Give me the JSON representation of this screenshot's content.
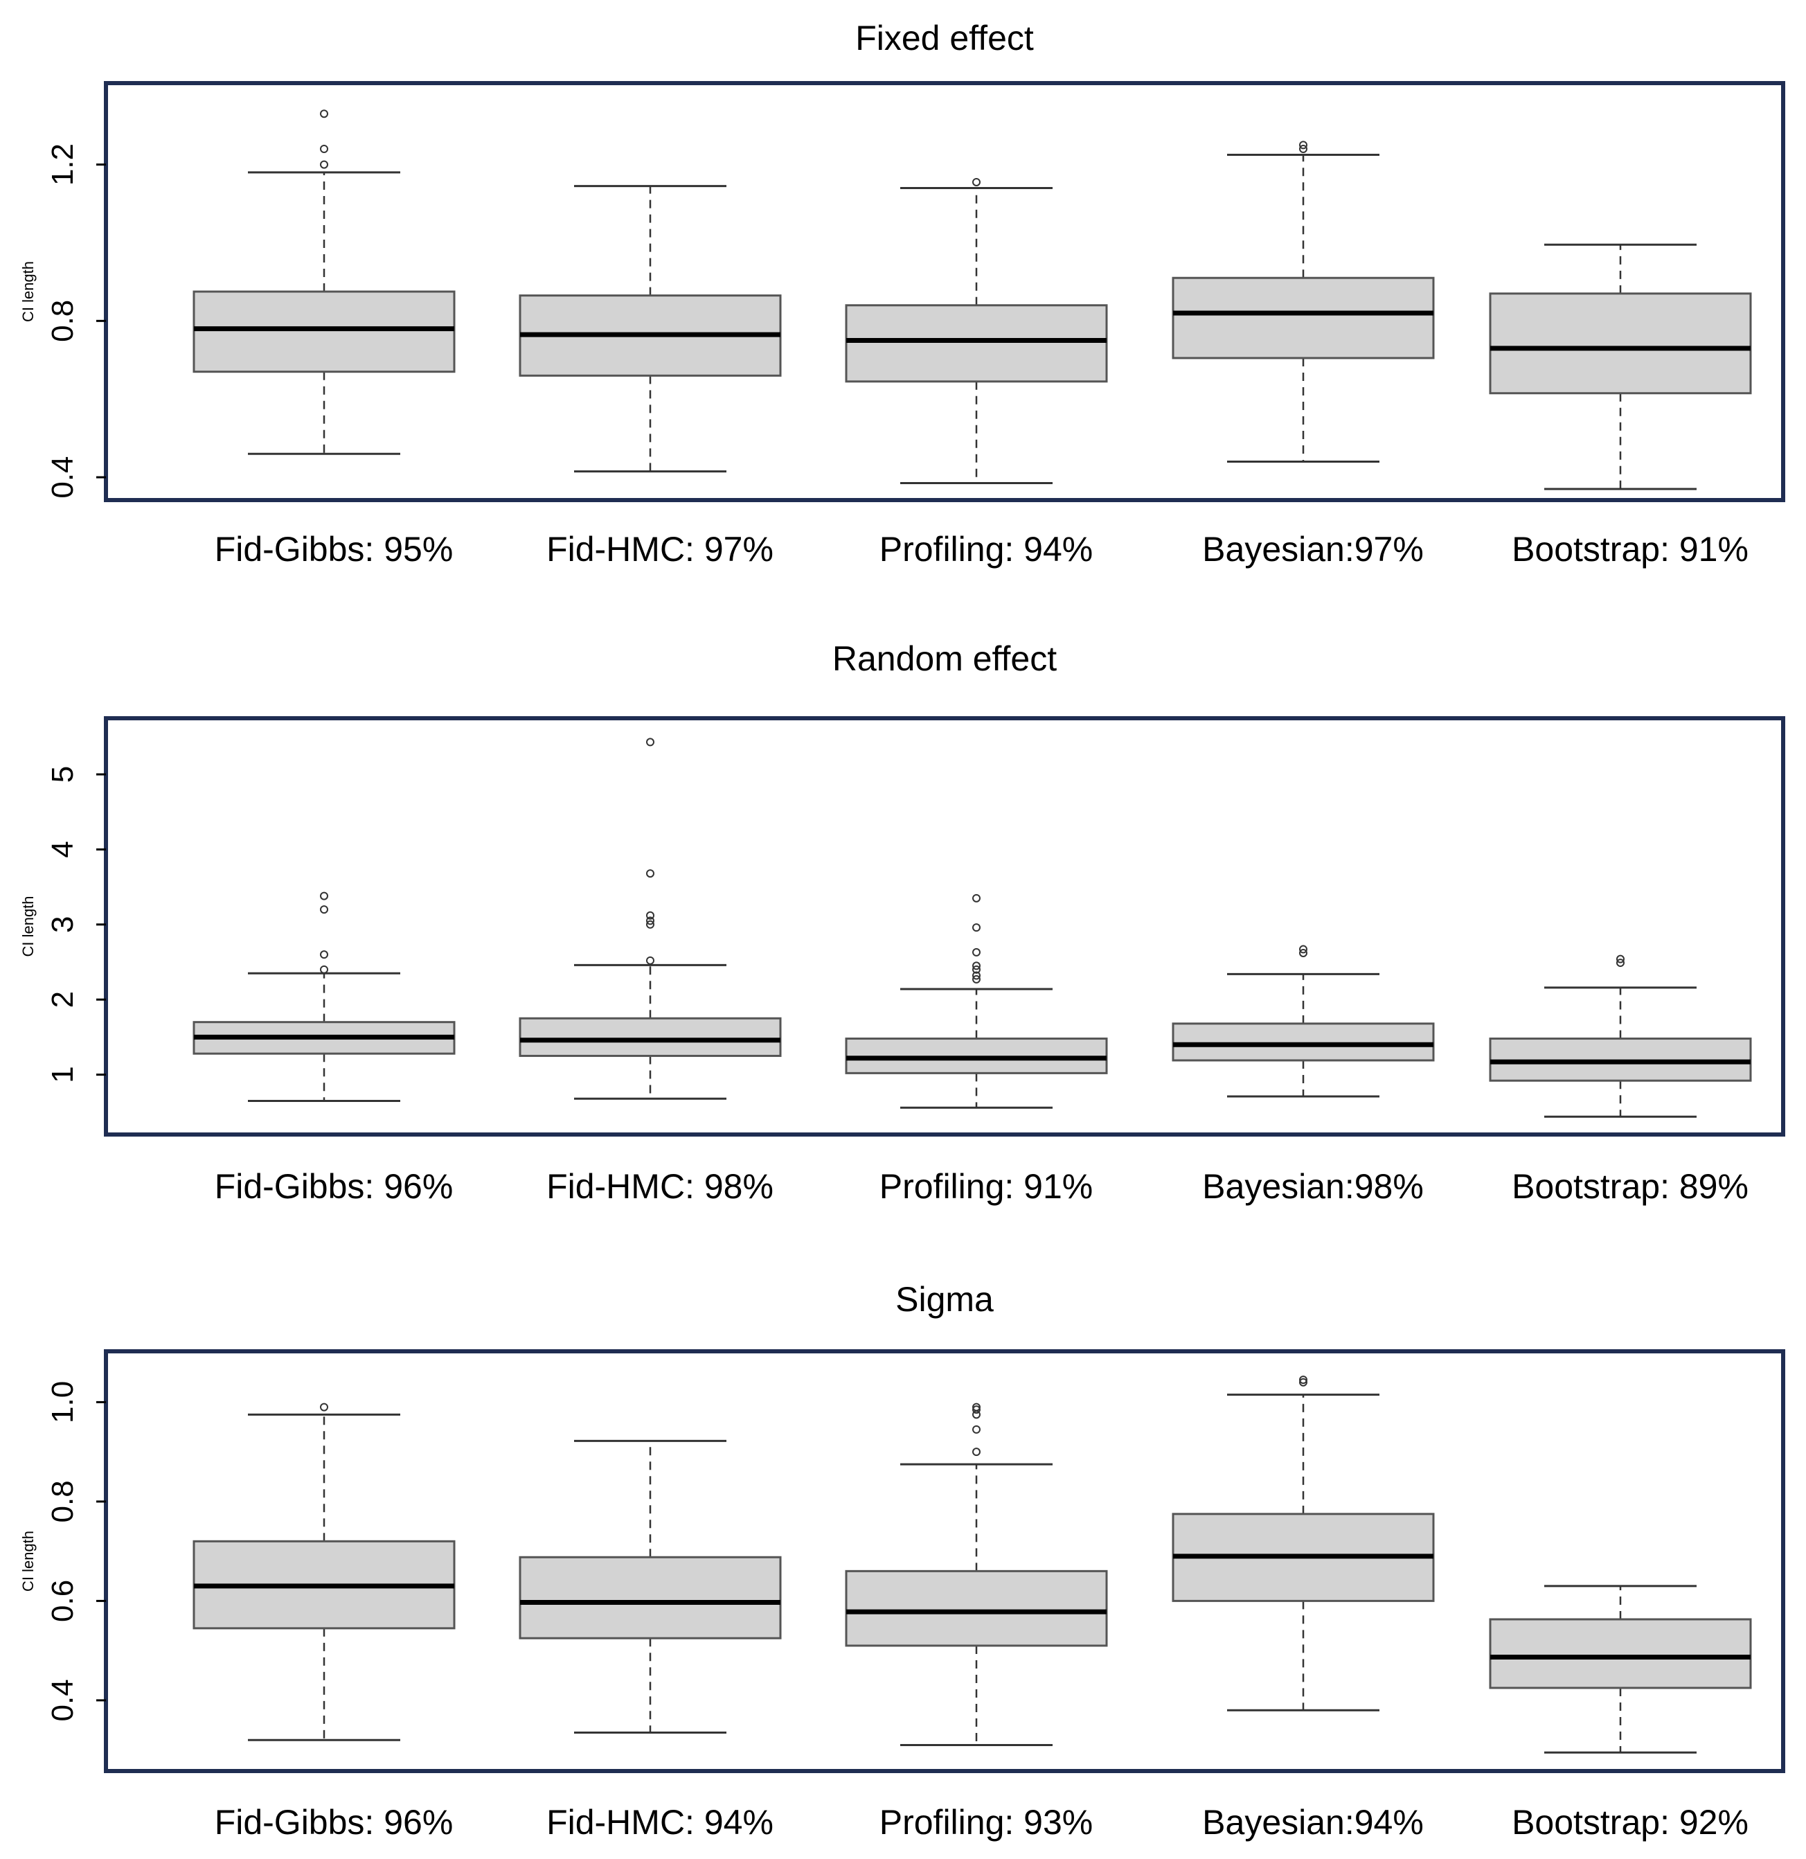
{
  "colors": {
    "frame": "#1f2d52",
    "box_fill": "#d3d3d3",
    "box_stroke": "#555555",
    "median": "#000000",
    "whisker": "#333333"
  },
  "chart_data": [
    {
      "type": "box",
      "title": "Fixed effect",
      "ylabel": "CI length",
      "ylim": [
        0.37,
        1.38
      ],
      "yticks": [
        0.4,
        0.8,
        1.2
      ],
      "ytick_labels": [
        "0.4",
        "0.8",
        "1.2"
      ],
      "categories": [
        "Fid-Gibbs: 95%",
        "Fid-HMC: 97%",
        "Profiling: 94%",
        "Bayesian:97%",
        "Bootstrap: 91%"
      ],
      "boxes": [
        {
          "whislo": 0.46,
          "q1": 0.67,
          "med": 0.78,
          "q3": 0.875,
          "whishi": 1.18,
          "fliers": [
            1.2,
            1.24,
            1.33
          ]
        },
        {
          "whislo": 0.415,
          "q1": 0.66,
          "med": 0.765,
          "q3": 0.865,
          "whishi": 1.145,
          "fliers": []
        },
        {
          "whislo": 0.385,
          "q1": 0.645,
          "med": 0.75,
          "q3": 0.84,
          "whishi": 1.14,
          "fliers": [
            1.155
          ]
        },
        {
          "whislo": 0.44,
          "q1": 0.705,
          "med": 0.82,
          "q3": 0.91,
          "whishi": 1.225,
          "fliers": [
            1.24,
            1.25
          ]
        },
        {
          "whislo": 0.37,
          "q1": 0.615,
          "med": 0.73,
          "q3": 0.87,
          "whishi": 0.995,
          "fliers": []
        }
      ]
    },
    {
      "type": "box",
      "title": "Random effect",
      "ylabel": "CI length",
      "ylim": [
        0.35,
        5.6
      ],
      "yticks": [
        1,
        2,
        3,
        4,
        5
      ],
      "ytick_labels": [
        "1",
        "2",
        "3",
        "4",
        "5"
      ],
      "categories": [
        "Fid-Gibbs: 96%",
        "Fid-HMC: 98%",
        "Profiling: 91%",
        "Bayesian:98%",
        "Bootstrap: 89%"
      ],
      "boxes": [
        {
          "whislo": 0.65,
          "q1": 1.28,
          "med": 1.5,
          "q3": 1.7,
          "whishi": 2.35,
          "fliers": [
            2.4,
            2.6,
            3.2,
            3.38
          ]
        },
        {
          "whislo": 0.68,
          "q1": 1.25,
          "med": 1.46,
          "q3": 1.75,
          "whishi": 2.46,
          "fliers": [
            2.52,
            3.0,
            3.05,
            3.12,
            3.68,
            5.43
          ]
        },
        {
          "whislo": 0.56,
          "q1": 1.02,
          "med": 1.22,
          "q3": 1.48,
          "whishi": 2.14,
          "fliers": [
            2.27,
            2.32,
            2.4,
            2.45,
            2.63,
            2.96,
            3.35
          ]
        },
        {
          "whislo": 0.71,
          "q1": 1.19,
          "med": 1.4,
          "q3": 1.68,
          "whishi": 2.34,
          "fliers": [
            2.62,
            2.67
          ]
        },
        {
          "whislo": 0.44,
          "q1": 0.92,
          "med": 1.17,
          "q3": 1.48,
          "whishi": 2.16,
          "fliers": [
            2.49,
            2.54
          ]
        }
      ]
    },
    {
      "type": "box",
      "title": "Sigma",
      "ylabel": "CI length",
      "ylim": [
        0.28,
        1.08
      ],
      "yticks": [
        0.4,
        0.6,
        0.8,
        1.0
      ],
      "ytick_labels": [
        "0.4",
        "0.6",
        "0.8",
        "1.0"
      ],
      "categories": [
        "Fid-Gibbs: 96%",
        "Fid-HMC: 94%",
        "Profiling: 93%",
        "Bayesian:94%",
        "Bootstrap: 92%"
      ],
      "boxes": [
        {
          "whislo": 0.32,
          "q1": 0.545,
          "med": 0.63,
          "q3": 0.72,
          "whishi": 0.975,
          "fliers": [
            0.99
          ]
        },
        {
          "whislo": 0.335,
          "q1": 0.525,
          "med": 0.597,
          "q3": 0.688,
          "whishi": 0.922,
          "fliers": []
        },
        {
          "whislo": 0.31,
          "q1": 0.51,
          "med": 0.578,
          "q3": 0.66,
          "whishi": 0.875,
          "fliers": [
            0.9,
            0.945,
            0.975,
            0.985,
            0.99
          ]
        },
        {
          "whislo": 0.38,
          "q1": 0.6,
          "med": 0.69,
          "q3": 0.775,
          "whishi": 1.015,
          "fliers": [
            1.04,
            1.045
          ]
        },
        {
          "whislo": 0.295,
          "q1": 0.425,
          "med": 0.487,
          "q3": 0.563,
          "whishi": 0.63,
          "fliers": []
        }
      ]
    }
  ]
}
